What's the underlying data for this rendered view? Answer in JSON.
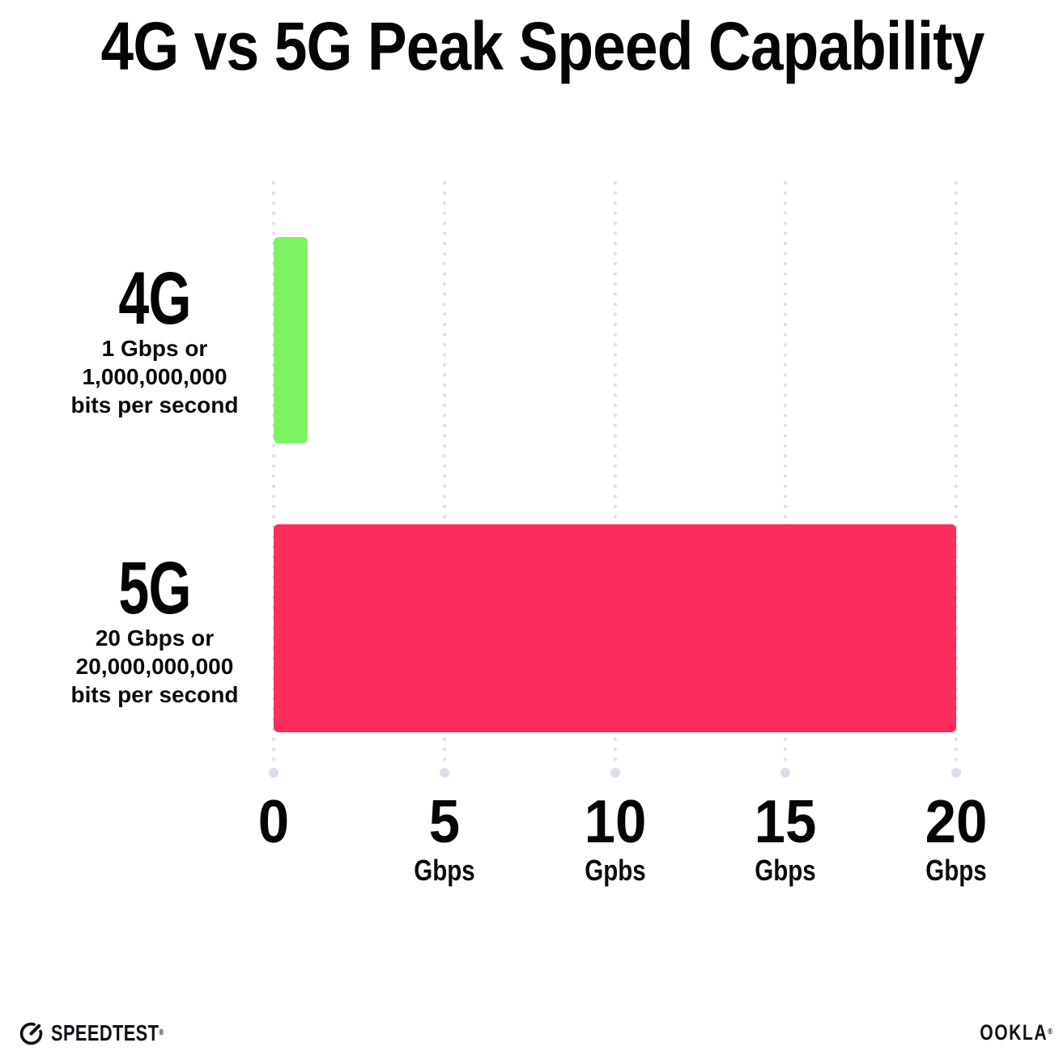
{
  "chart_data": {
    "type": "bar",
    "orientation": "horizontal",
    "title": "4G vs 5G Peak Speed Capability",
    "categories": [
      "4G",
      "5G"
    ],
    "values": [
      1,
      20
    ],
    "bar_colors": [
      "#7DF363",
      "#FC2D5C"
    ],
    "category_sublabels": [
      [
        "1 Gbps or",
        "1,000,000,000",
        "bits per second"
      ],
      [
        "20 Gbps or",
        "20,000,000,000",
        "bits per second"
      ]
    ],
    "xlim": [
      0,
      20
    ],
    "x_ticks": [
      {
        "value": "0",
        "unit": ""
      },
      {
        "value": "5",
        "unit": "Gbps"
      },
      {
        "value": "10",
        "unit": "Gpbs"
      },
      {
        "value": "15",
        "unit": "Gbps"
      },
      {
        "value": "20",
        "unit": "Gbps"
      }
    ],
    "grid": "vertical-dotted",
    "legend": "none"
  },
  "footer": {
    "speedtest_label": "SPEEDTEST",
    "speedtest_trademark": "®",
    "ookla_label": "OOKLA",
    "ookla_trademark": "®"
  },
  "colors": {
    "background": "#FFFFFF",
    "text": "#0A0A0A",
    "grid_dot": "#DBDDE8",
    "bar_4g": "#7DF363",
    "bar_5g": "#FC2D5C"
  }
}
